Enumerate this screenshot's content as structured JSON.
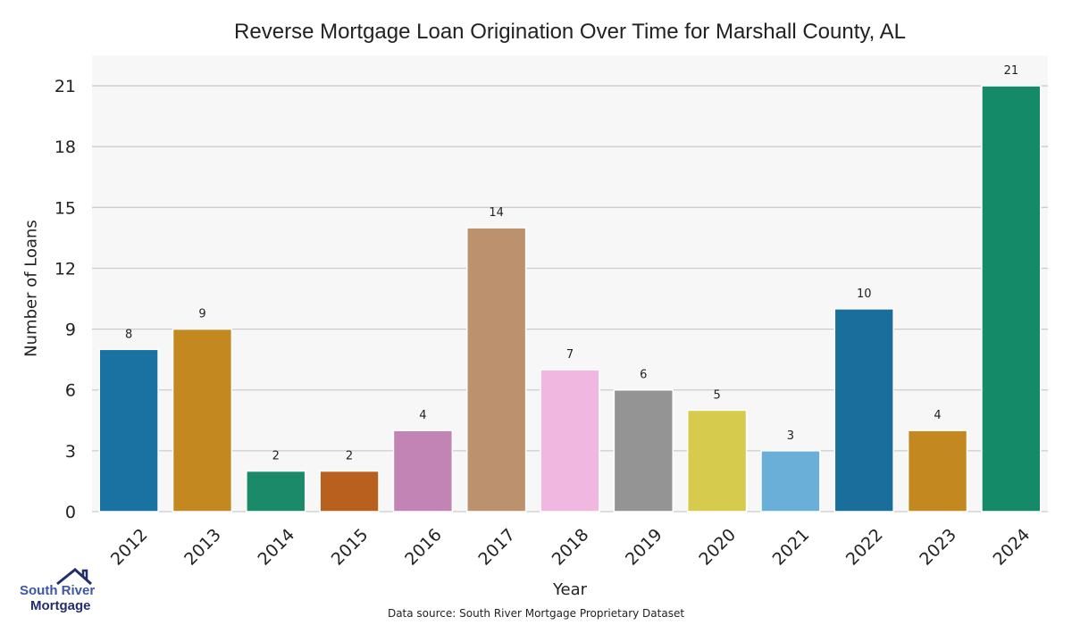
{
  "chart_data": {
    "type": "bar",
    "title": "Reverse Mortgage Loan Origination Over Time for Marshall County, AL",
    "xlabel": "Year",
    "ylabel": "Number of Loans",
    "categories": [
      "2012",
      "2013",
      "2014",
      "2015",
      "2016",
      "2017",
      "2018",
      "2019",
      "2020",
      "2021",
      "2022",
      "2023",
      "2024"
    ],
    "values": [
      8,
      9,
      2,
      2,
      4,
      14,
      7,
      6,
      5,
      3,
      10,
      4,
      21
    ],
    "colors": [
      "#1a72a3",
      "#c38820",
      "#1a8a68",
      "#b8611e",
      "#c283b5",
      "#bc916d",
      "#f0b8e0",
      "#949494",
      "#d6cb4c",
      "#69afd8",
      "#1a6e9c",
      "#c38820",
      "#148a68"
    ],
    "yticks": [
      0,
      3,
      6,
      9,
      12,
      15,
      18,
      21
    ],
    "ylim": [
      0,
      22.5
    ],
    "grid": true,
    "data_labels": true
  },
  "footer": {
    "source": "Data source: South River Mortgage Proprietary Dataset"
  },
  "logo": {
    "line1": "South River",
    "line2": "Mortgage",
    "color1": "#3d57a5",
    "color2": "#232f6b"
  }
}
